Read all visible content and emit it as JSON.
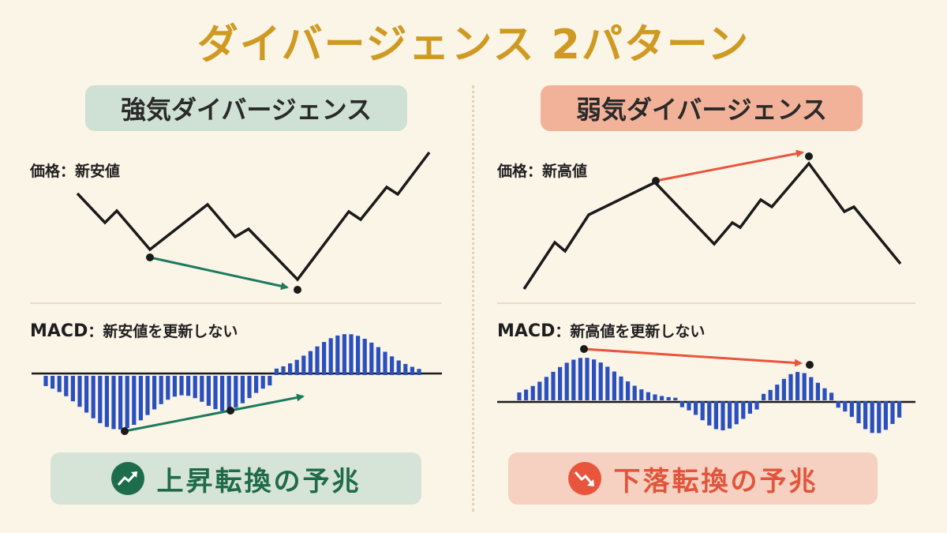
{
  "title": "ダイバージェンス 2パターン",
  "colors": {
    "title": "#cf9a22",
    "price_line": "#1a1a1a",
    "macd_bar": "#2a4fbf",
    "bullish_arrow": "#1d7a5c",
    "bearish_arrow": "#e8553c",
    "bullish_pill": "#cfe0d4",
    "bearish_pill": "#f2b29a"
  },
  "bullish": {
    "heading": "強気ダイバージェンス",
    "price_label": "価格：新安値",
    "macd_label_prefix": "MACD",
    "macd_label_text": "：新安値を更新しない",
    "footer": "上昇転換の予兆",
    "footer_icon": "trend-up-icon"
  },
  "bearish": {
    "heading": "弱気ダイバージェンス",
    "price_label": "価格：新高値",
    "macd_label_prefix": "MACD",
    "macd_label_text": "：新高値を更新しない",
    "footer": "下落転換の予兆",
    "footer_icon": "trend-down-icon"
  }
}
